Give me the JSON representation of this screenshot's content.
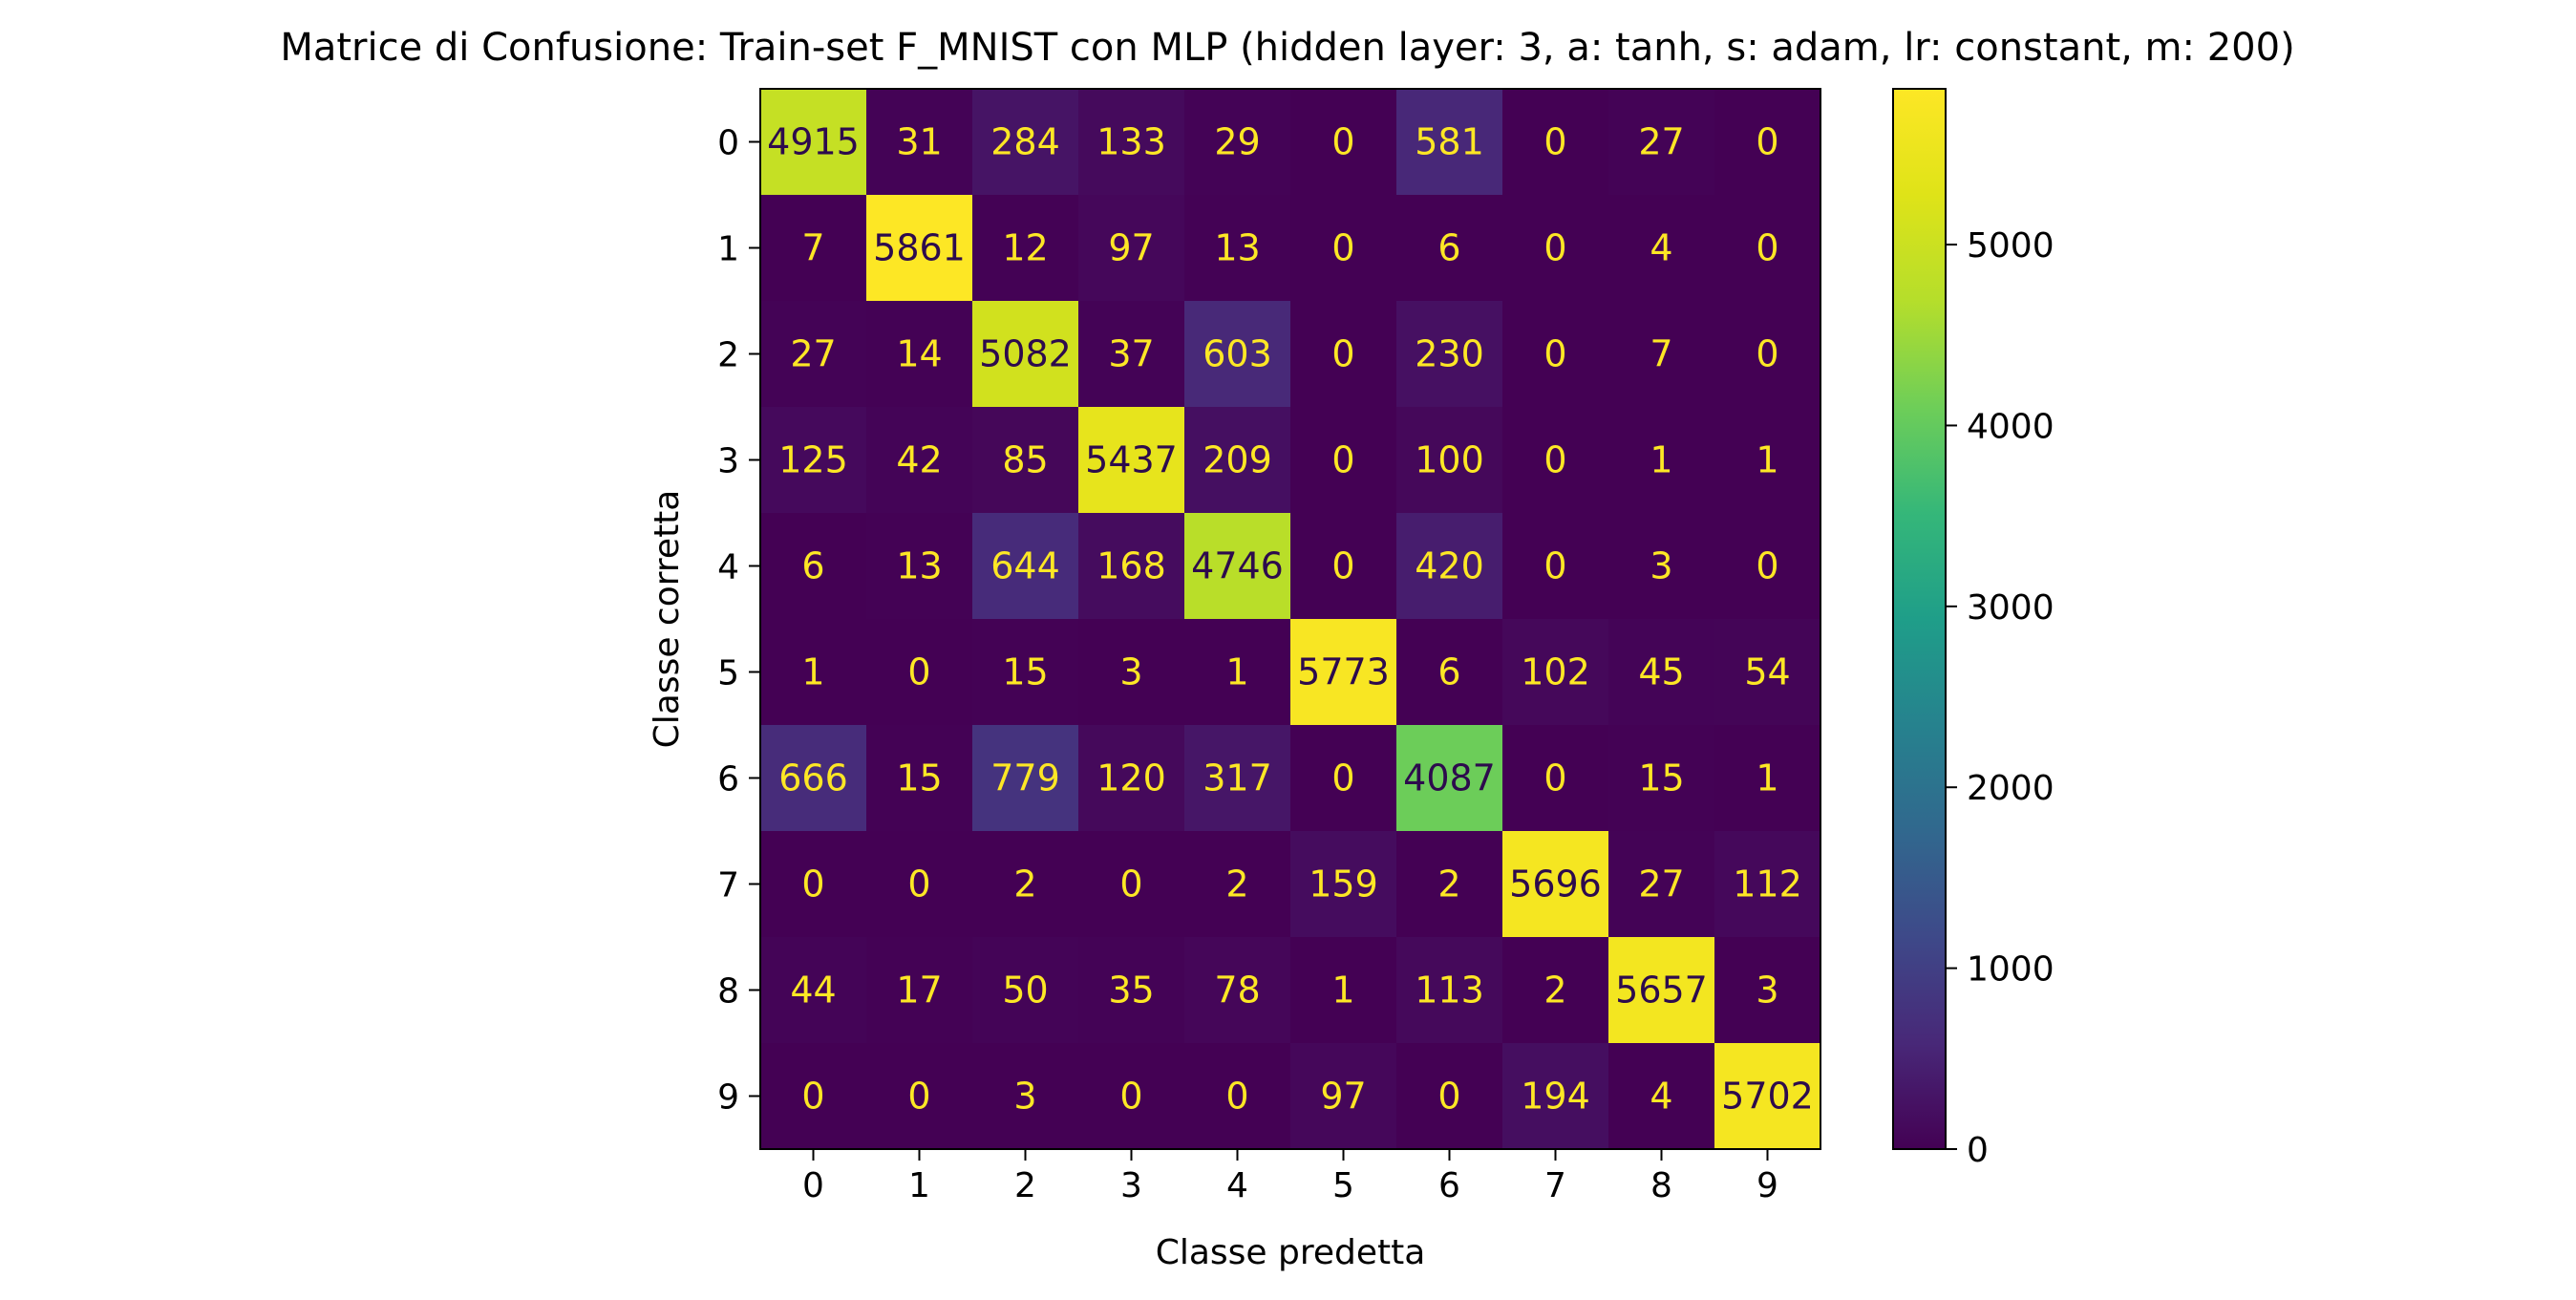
{
  "chart_data": {
    "type": "heatmap",
    "title": "Matrice di Confusione: Train-set F_MNIST con MLP (hidden layer: 3, a: tanh, s: adam, lr: constant, m: 200)",
    "xlabel": "Classe predetta",
    "ylabel": "Classe corretta",
    "x_categories": [
      "0",
      "1",
      "2",
      "3",
      "4",
      "5",
      "6",
      "7",
      "8",
      "9"
    ],
    "y_categories": [
      "0",
      "1",
      "2",
      "3",
      "4",
      "5",
      "6",
      "7",
      "8",
      "9"
    ],
    "matrix": [
      [
        4915,
        31,
        284,
        133,
        29,
        0,
        581,
        0,
        27,
        0
      ],
      [
        7,
        5861,
        12,
        97,
        13,
        0,
        6,
        0,
        4,
        0
      ],
      [
        27,
        14,
        5082,
        37,
        603,
        0,
        230,
        0,
        7,
        0
      ],
      [
        125,
        42,
        85,
        5437,
        209,
        0,
        100,
        0,
        1,
        1
      ],
      [
        6,
        13,
        644,
        168,
        4746,
        0,
        420,
        0,
        3,
        0
      ],
      [
        1,
        0,
        15,
        3,
        1,
        5773,
        6,
        102,
        45,
        54
      ],
      [
        666,
        15,
        779,
        120,
        317,
        0,
        4087,
        0,
        15,
        1
      ],
      [
        0,
        0,
        2,
        0,
        2,
        159,
        2,
        5696,
        27,
        112
      ],
      [
        44,
        17,
        50,
        35,
        78,
        1,
        113,
        2,
        5657,
        3
      ],
      [
        0,
        0,
        3,
        0,
        0,
        97,
        0,
        194,
        4,
        5702
      ]
    ],
    "colormap": "viridis",
    "colorbar": {
      "range": [
        0,
        5861
      ],
      "ticks": [
        "0",
        "1000",
        "2000",
        "3000",
        "4000",
        "5000"
      ]
    },
    "text_colors": {
      "light_cell": "#2d0b4d",
      "dark_cell": "#fde725"
    }
  }
}
